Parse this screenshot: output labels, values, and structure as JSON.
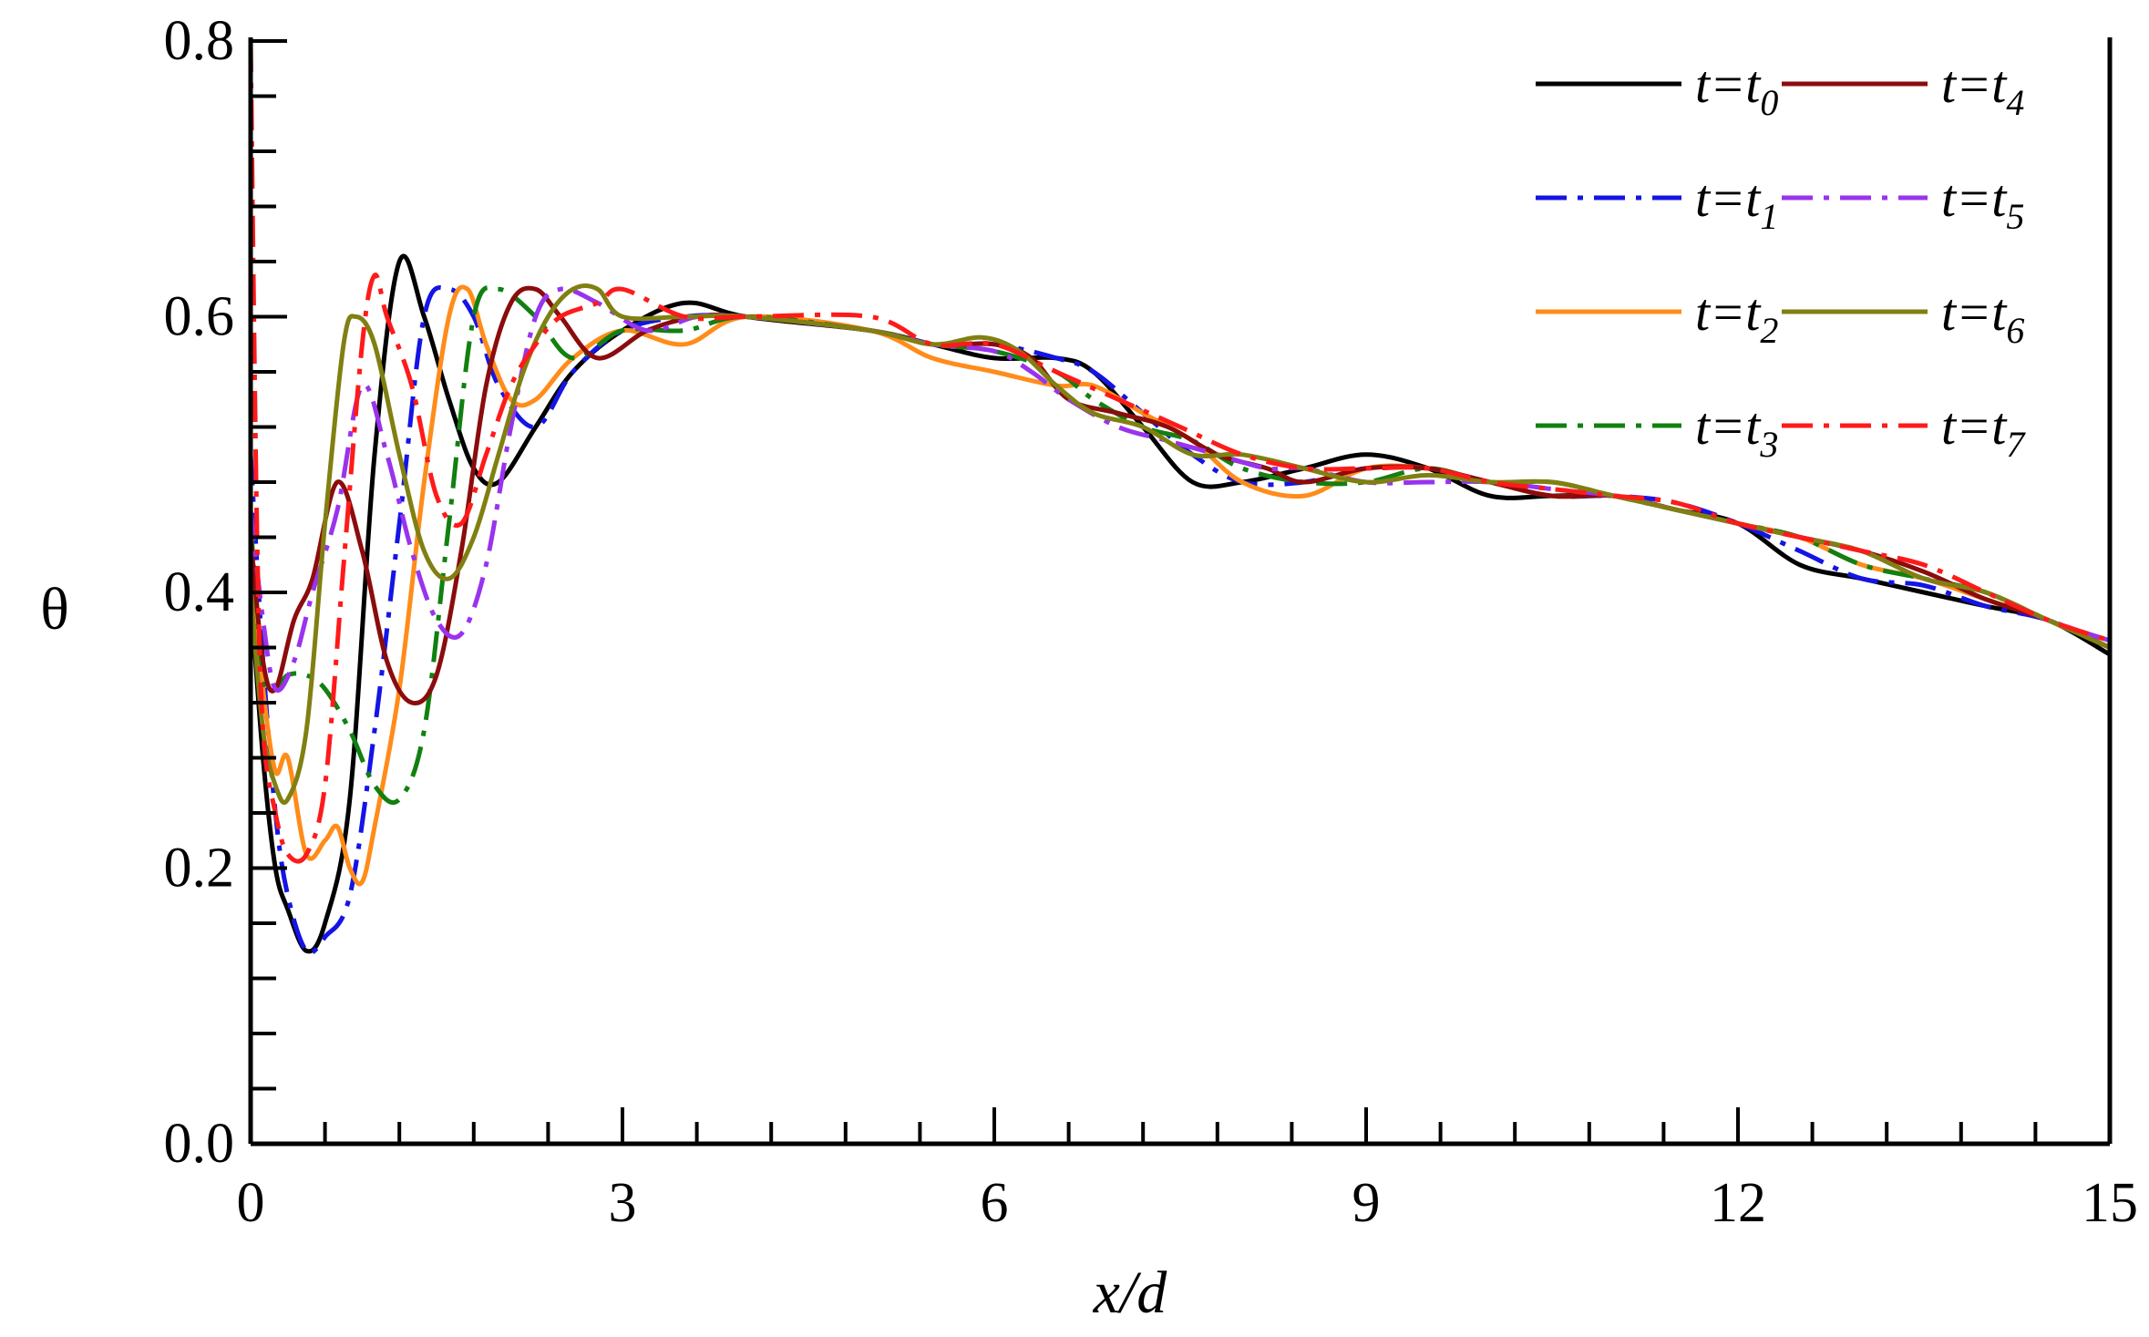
{
  "chart_data": {
    "type": "line",
    "title": "",
    "xlabel": "x/d",
    "ylabel": "θ",
    "xlim": [
      0,
      15
    ],
    "ylim": [
      0,
      0.8
    ],
    "xticks": [
      0,
      3,
      6,
      9,
      12,
      15
    ],
    "xtick_labels": [
      "0",
      "3",
      "6",
      "9",
      "12",
      "15"
    ],
    "xminor_step": 0.6,
    "yticks": [
      0.0,
      0.2,
      0.4,
      0.6,
      0.8
    ],
    "ytick_labels": [
      "0.0",
      "0.2",
      "0.4",
      "0.6",
      "0.8"
    ],
    "yminor_step": 0.04,
    "grid": false,
    "legend_position": "top-right",
    "series": [
      {
        "name": "t=t0",
        "name_main": "t=t",
        "name_sub": "0",
        "color": "#000000",
        "dash": "solid",
        "x": [
          0,
          0.1,
          0.2,
          0.3,
          0.45,
          0.6,
          0.8,
          1.0,
          1.2,
          1.4,
          1.6,
          1.8,
          2.0,
          2.3,
          2.6,
          3.0,
          3.5,
          4.0,
          5.0,
          5.5,
          6.0,
          6.5,
          6.8,
          7.2,
          7.6,
          8.0,
          8.5,
          9.0,
          9.5,
          10.0,
          10.5,
          11.0,
          11.5,
          12.0,
          12.5,
          13.0,
          13.5,
          14.0,
          14.5,
          15.0
        ],
        "y": [
          0.4,
          0.28,
          0.2,
          0.17,
          0.14,
          0.16,
          0.25,
          0.5,
          0.64,
          0.6,
          0.54,
          0.49,
          0.48,
          0.52,
          0.56,
          0.59,
          0.61,
          0.6,
          0.59,
          0.58,
          0.57,
          0.57,
          0.56,
          0.52,
          0.48,
          0.48,
          0.49,
          0.5,
          0.49,
          0.47,
          0.47,
          0.47,
          0.46,
          0.45,
          0.42,
          0.41,
          0.4,
          0.39,
          0.38,
          0.355
        ]
      },
      {
        "name": "t=t1",
        "name_main": "t=t",
        "name_sub": "1",
        "color": "#1414e6",
        "dash": "dashdot",
        "x": [
          0,
          0.1,
          0.2,
          0.3,
          0.45,
          0.6,
          0.8,
          1.0,
          1.2,
          1.4,
          1.6,
          1.8,
          2.0,
          2.3,
          2.6,
          3.0,
          3.5,
          4.0,
          5.0,
          5.5,
          6.0,
          6.5,
          6.8,
          7.2,
          7.6,
          8.0,
          8.5,
          9.0,
          9.5,
          10.0,
          10.5,
          11.0,
          11.5,
          12.0,
          12.5,
          13.0,
          13.5,
          14.0,
          14.5,
          15.0
        ],
        "y": [
          0.5,
          0.35,
          0.24,
          0.18,
          0.14,
          0.15,
          0.18,
          0.3,
          0.45,
          0.6,
          0.62,
          0.6,
          0.55,
          0.52,
          0.56,
          0.59,
          0.6,
          0.6,
          0.59,
          0.58,
          0.58,
          0.57,
          0.56,
          0.53,
          0.5,
          0.48,
          0.48,
          0.49,
          0.49,
          0.48,
          0.47,
          0.47,
          0.465,
          0.45,
          0.43,
          0.41,
          0.405,
          0.39,
          0.38,
          0.36
        ]
      },
      {
        "name": "t=t2",
        "name_main": "t=t",
        "name_sub": "2",
        "color": "#ff8c1a",
        "dash": "solid",
        "x": [
          0,
          0.1,
          0.2,
          0.3,
          0.45,
          0.6,
          0.7,
          0.8,
          0.9,
          1.0,
          1.2,
          1.4,
          1.6,
          1.75,
          1.9,
          2.1,
          2.3,
          2.6,
          3.0,
          3.5,
          4.0,
          5.0,
          5.5,
          6.0,
          6.5,
          6.8,
          7.2,
          7.6,
          8.0,
          8.5,
          9.0,
          9.5,
          10.0,
          10.5,
          11.0,
          11.5,
          12.0,
          12.5,
          13.0,
          13.5,
          14.0,
          14.5,
          15.0
        ],
        "y": [
          0.42,
          0.33,
          0.27,
          0.28,
          0.21,
          0.22,
          0.23,
          0.2,
          0.19,
          0.23,
          0.33,
          0.48,
          0.6,
          0.62,
          0.58,
          0.54,
          0.54,
          0.57,
          0.59,
          0.58,
          0.6,
          0.59,
          0.57,
          0.56,
          0.55,
          0.55,
          0.53,
          0.51,
          0.48,
          0.47,
          0.49,
          0.49,
          0.48,
          0.47,
          0.47,
          0.46,
          0.45,
          0.44,
          0.42,
          0.41,
          0.395,
          0.38,
          0.36
        ]
      },
      {
        "name": "t=t3",
        "name_main": "t=t",
        "name_sub": "3",
        "color": "#118011",
        "dash": "dashdot",
        "x": [
          0,
          0.1,
          0.2,
          0.3,
          0.45,
          0.6,
          0.8,
          1.0,
          1.2,
          1.4,
          1.6,
          1.8,
          2.0,
          2.3,
          2.6,
          3.0,
          3.5,
          4.0,
          5.0,
          5.5,
          6.0,
          6.5,
          6.8,
          7.2,
          7.6,
          8.0,
          8.5,
          9.0,
          9.5,
          10.0,
          10.5,
          11.0,
          11.5,
          12.0,
          12.5,
          13.0,
          13.5,
          14.0,
          14.5,
          15.0
        ],
        "y": [
          0.45,
          0.34,
          0.33,
          0.34,
          0.34,
          0.33,
          0.3,
          0.26,
          0.25,
          0.3,
          0.45,
          0.6,
          0.62,
          0.6,
          0.57,
          0.59,
          0.59,
          0.6,
          0.59,
          0.58,
          0.575,
          0.56,
          0.54,
          0.52,
          0.51,
          0.49,
          0.48,
          0.48,
          0.49,
          0.48,
          0.48,
          0.47,
          0.46,
          0.45,
          0.44,
          0.42,
          0.41,
          0.4,
          0.38,
          0.36
        ]
      },
      {
        "name": "t=t4",
        "name_main": "t=t",
        "name_sub": "4",
        "color": "#8b0c0c",
        "dash": "solid",
        "x": [
          0,
          0.1,
          0.2,
          0.35,
          0.5,
          0.7,
          0.9,
          1.1,
          1.3,
          1.5,
          1.7,
          1.9,
          2.1,
          2.3,
          2.5,
          2.8,
          3.2,
          3.6,
          4.0,
          5.0,
          5.5,
          6.0,
          6.3,
          6.6,
          7.0,
          7.4,
          7.8,
          8.2,
          8.5,
          9.0,
          9.5,
          10.0,
          10.5,
          11.0,
          11.5,
          12.0,
          12.5,
          13.0,
          13.5,
          14.0,
          14.5,
          15.0
        ],
        "y": [
          0.44,
          0.35,
          0.33,
          0.38,
          0.41,
          0.48,
          0.43,
          0.35,
          0.32,
          0.34,
          0.43,
          0.55,
          0.61,
          0.62,
          0.6,
          0.57,
          0.59,
          0.6,
          0.6,
          0.59,
          0.58,
          0.58,
          0.57,
          0.54,
          0.53,
          0.52,
          0.5,
          0.49,
          0.48,
          0.49,
          0.49,
          0.48,
          0.47,
          0.47,
          0.46,
          0.45,
          0.44,
          0.43,
          0.415,
          0.395,
          0.38,
          0.36
        ]
      },
      {
        "name": "t=t5",
        "name_main": "t=t",
        "name_sub": "5",
        "color": "#9933ee",
        "dash": "dashdot",
        "x": [
          0,
          0.1,
          0.2,
          0.35,
          0.5,
          0.7,
          0.9,
          1.1,
          1.3,
          1.5,
          1.7,
          1.9,
          2.1,
          2.3,
          2.5,
          2.8,
          3.2,
          3.6,
          4.0,
          5.0,
          5.5,
          6.0,
          6.3,
          6.6,
          7.0,
          7.4,
          7.8,
          8.2,
          8.5,
          9.0,
          9.5,
          10.0,
          10.5,
          11.0,
          11.5,
          12.0,
          12.5,
          13.0,
          13.5,
          14.0,
          14.5,
          15.0
        ],
        "y": [
          0.46,
          0.38,
          0.33,
          0.35,
          0.4,
          0.46,
          0.55,
          0.5,
          0.43,
          0.38,
          0.37,
          0.42,
          0.52,
          0.6,
          0.62,
          0.61,
          0.59,
          0.6,
          0.6,
          0.59,
          0.58,
          0.575,
          0.56,
          0.54,
          0.52,
          0.51,
          0.5,
          0.49,
          0.49,
          0.48,
          0.48,
          0.48,
          0.475,
          0.47,
          0.46,
          0.45,
          0.44,
          0.43,
          0.41,
          0.4,
          0.38,
          0.365
        ]
      },
      {
        "name": "t=t6",
        "name_main": "t=t",
        "name_sub": "6",
        "color": "#808012",
        "dash": "solid",
        "x": [
          0,
          0.1,
          0.2,
          0.3,
          0.45,
          0.6,
          0.75,
          0.85,
          1.0,
          1.2,
          1.4,
          1.6,
          1.8,
          2.0,
          2.2,
          2.4,
          2.6,
          2.8,
          3.0,
          3.5,
          4.0,
          5.0,
          5.5,
          5.9,
          6.2,
          6.5,
          6.8,
          7.2,
          7.6,
          8.0,
          8.5,
          9.0,
          9.5,
          10.0,
          10.5,
          11.0,
          11.5,
          12.0,
          12.5,
          13.0,
          13.5,
          14.0,
          14.5,
          15.0
        ],
        "y": [
          0.4,
          0.3,
          0.26,
          0.25,
          0.3,
          0.45,
          0.58,
          0.6,
          0.58,
          0.5,
          0.43,
          0.41,
          0.44,
          0.5,
          0.56,
          0.6,
          0.62,
          0.62,
          0.6,
          0.6,
          0.6,
          0.59,
          0.58,
          0.585,
          0.575,
          0.55,
          0.53,
          0.52,
          0.5,
          0.5,
          0.49,
          0.48,
          0.485,
          0.48,
          0.48,
          0.47,
          0.46,
          0.45,
          0.44,
          0.43,
          0.41,
          0.4,
          0.38,
          0.36
        ]
      },
      {
        "name": "t=t7",
        "name_main": "t=t",
        "name_sub": "7",
        "color": "#ff1a1a",
        "dash": "dashdot",
        "x": [
          0,
          0.05,
          0.1,
          0.2,
          0.3,
          0.45,
          0.6,
          0.75,
          0.9,
          1.0,
          1.1,
          1.3,
          1.5,
          1.7,
          1.9,
          2.1,
          2.3,
          2.5,
          2.8,
          3.0,
          3.5,
          4.0,
          5.0,
          5.5,
          6.0,
          6.5,
          7.0,
          7.5,
          8.0,
          8.5,
          9.0,
          9.5,
          10.0,
          10.5,
          11.0,
          11.5,
          12.0,
          12.5,
          13.0,
          13.5,
          14.0,
          14.5,
          15.0
        ],
        "y": [
          0.8,
          0.45,
          0.3,
          0.24,
          0.21,
          0.21,
          0.26,
          0.42,
          0.58,
          0.63,
          0.6,
          0.55,
          0.47,
          0.45,
          0.5,
          0.55,
          0.58,
          0.6,
          0.61,
          0.62,
          0.6,
          0.6,
          0.6,
          0.58,
          0.58,
          0.56,
          0.54,
          0.52,
          0.5,
          0.49,
          0.49,
          0.49,
          0.48,
          0.475,
          0.47,
          0.465,
          0.45,
          0.44,
          0.43,
          0.42,
          0.4,
          0.38,
          0.365
        ]
      }
    ]
  }
}
